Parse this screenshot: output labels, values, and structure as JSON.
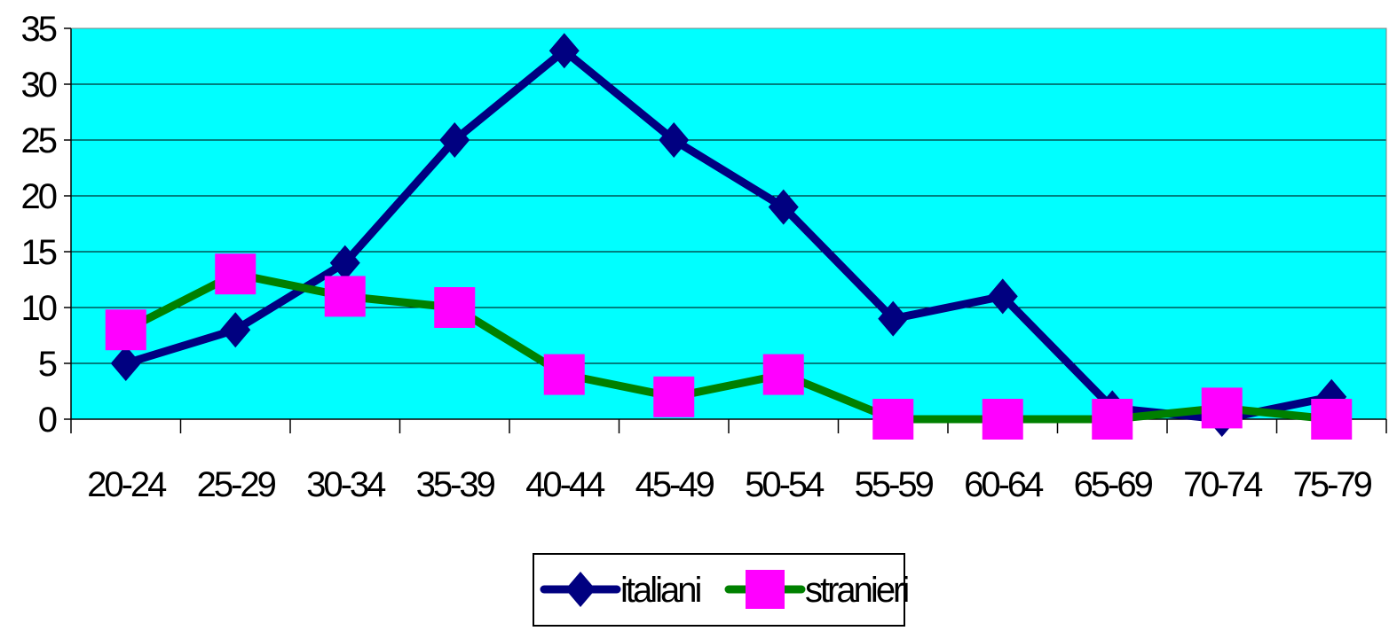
{
  "chart_data": {
    "type": "line",
    "title": "",
    "xlabel": "",
    "ylabel": "",
    "categories": [
      "20-24",
      "25-29",
      "30-34",
      "35-39",
      "40-44",
      "45-49",
      "50-54",
      "55-59",
      "60-64",
      "65-69",
      "70-74",
      "75-79"
    ],
    "ylim": [
      0,
      35
    ],
    "yticks": [
      0,
      5,
      10,
      15,
      20,
      25,
      30,
      35
    ],
    "grid": true,
    "legend_position": "bottom",
    "plot_background": "#00FFFF",
    "series": [
      {
        "name": "italiani",
        "values": [
          5,
          8,
          14,
          25,
          33,
          25,
          19,
          9,
          11,
          1,
          0,
          2
        ],
        "line_color": "#000080",
        "marker": "diamond",
        "marker_color": "#000080"
      },
      {
        "name": "stranieri",
        "values": [
          8,
          13,
          11,
          10,
          4,
          2,
          4,
          0,
          0,
          0,
          1,
          0
        ],
        "line_color": "#008000",
        "marker": "square",
        "marker_color": "#FF00FF"
      }
    ]
  }
}
